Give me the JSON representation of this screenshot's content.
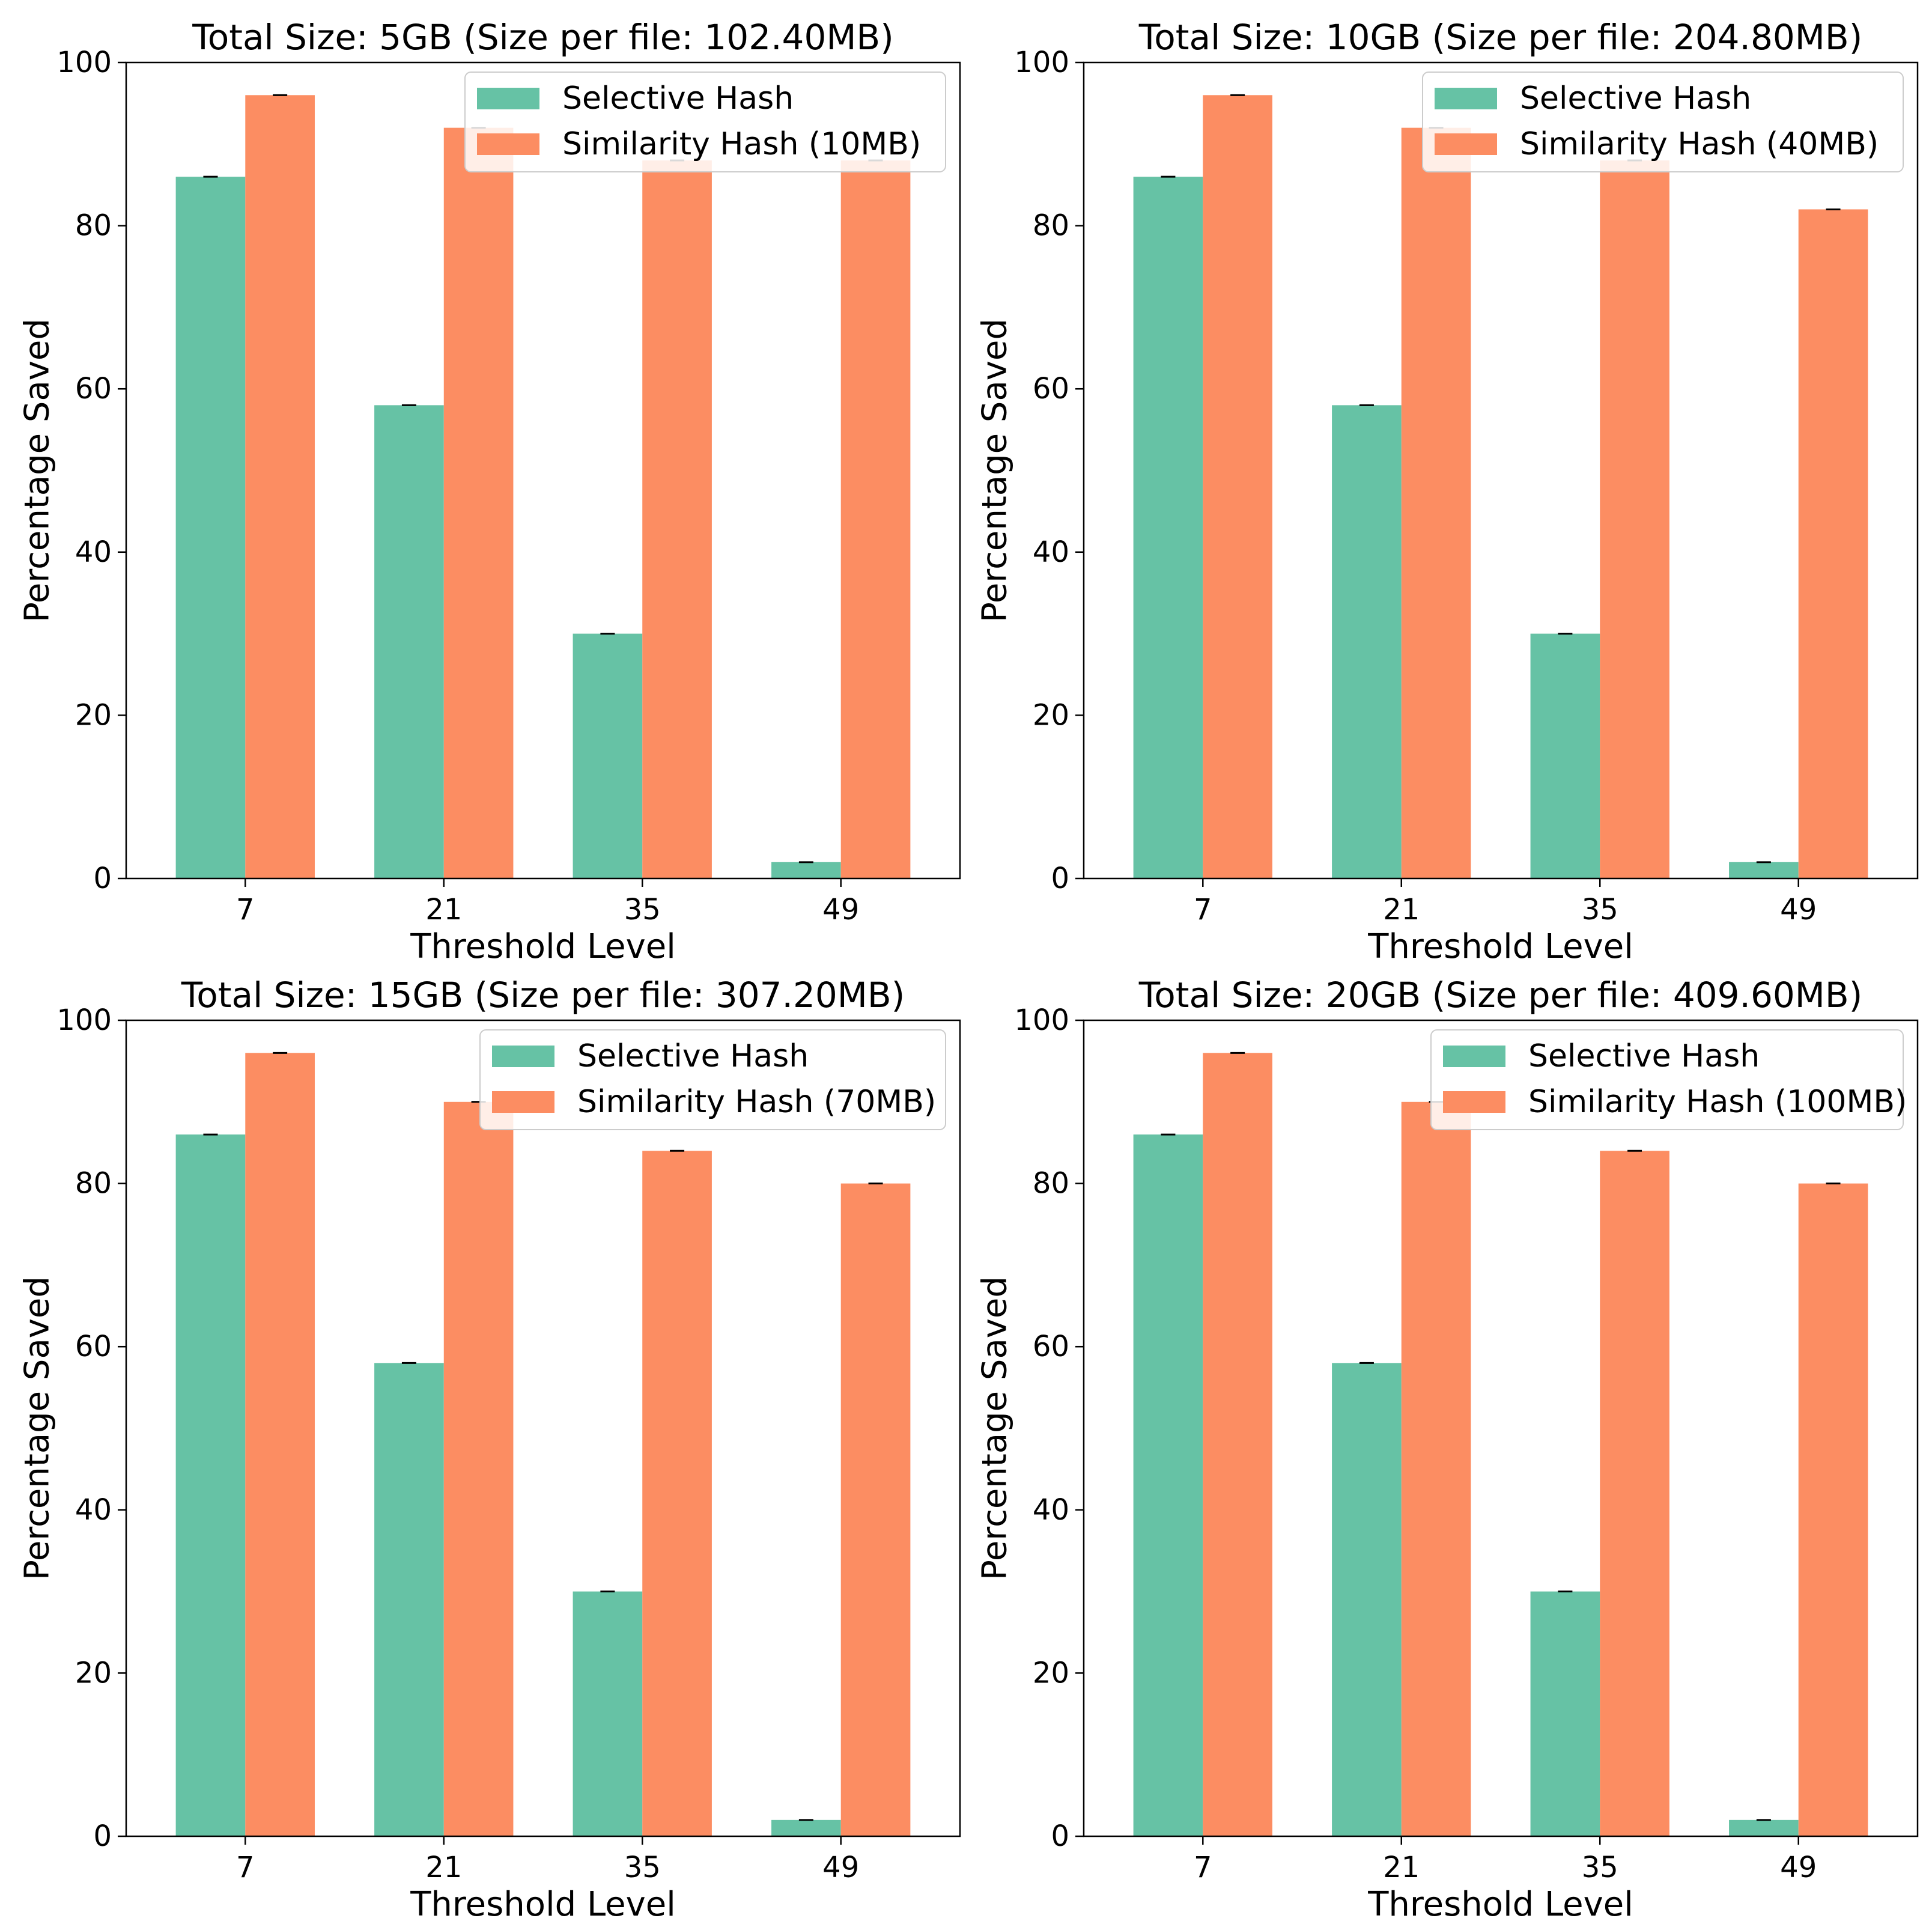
{
  "figure": {
    "colors": {
      "selective": "#66c2a5",
      "similarity": "#fc8d62",
      "axes": "#000000",
      "legend_border": "#cccccc"
    }
  },
  "chart_data": [
    {
      "type": "bar",
      "title": "Total Size: 5GB (Size per file: 102.40MB)",
      "xlabel": "Threshold Level",
      "ylabel": "Percentage Saved",
      "categories": [
        "7",
        "21",
        "35",
        "49"
      ],
      "ylim": [
        0,
        100
      ],
      "yticks": [
        "0",
        "20",
        "40",
        "60",
        "80",
        "100"
      ],
      "grid": false,
      "legend_position": "top-right",
      "series": [
        {
          "name": "Selective Hash",
          "color": "#66c2a5",
          "values": [
            86,
            58,
            30,
            2
          ]
        },
        {
          "name": "Similarity Hash (10MB)",
          "color": "#fc8d62",
          "values": [
            96,
            92,
            88,
            88
          ]
        }
      ]
    },
    {
      "type": "bar",
      "title": "Total Size: 10GB (Size per file: 204.80MB)",
      "xlabel": "Threshold Level",
      "ylabel": "Percentage Saved",
      "categories": [
        "7",
        "21",
        "35",
        "49"
      ],
      "ylim": [
        0,
        100
      ],
      "yticks": [
        "0",
        "20",
        "40",
        "60",
        "80",
        "100"
      ],
      "grid": false,
      "legend_position": "top-right",
      "series": [
        {
          "name": "Selective Hash",
          "color": "#66c2a5",
          "values": [
            86,
            58,
            30,
            2
          ]
        },
        {
          "name": "Similarity Hash (40MB)",
          "color": "#fc8d62",
          "values": [
            96,
            92,
            88,
            82
          ]
        }
      ]
    },
    {
      "type": "bar",
      "title": "Total Size: 15GB (Size per file: 307.20MB)",
      "xlabel": "Threshold Level",
      "ylabel": "Percentage Saved",
      "categories": [
        "7",
        "21",
        "35",
        "49"
      ],
      "ylim": [
        0,
        100
      ],
      "yticks": [
        "0",
        "20",
        "40",
        "60",
        "80",
        "100"
      ],
      "grid": false,
      "legend_position": "top-right",
      "series": [
        {
          "name": "Selective Hash",
          "color": "#66c2a5",
          "values": [
            86,
            58,
            30,
            2
          ]
        },
        {
          "name": "Similarity Hash (70MB)",
          "color": "#fc8d62",
          "values": [
            96,
            90,
            84,
            80
          ]
        }
      ]
    },
    {
      "type": "bar",
      "title": "Total Size: 20GB (Size per file: 409.60MB)",
      "xlabel": "Threshold Level",
      "ylabel": "Percentage Saved",
      "categories": [
        "7",
        "21",
        "35",
        "49"
      ],
      "ylim": [
        0,
        100
      ],
      "yticks": [
        "0",
        "20",
        "40",
        "60",
        "80",
        "100"
      ],
      "grid": false,
      "legend_position": "top-right",
      "series": [
        {
          "name": "Selective Hash",
          "color": "#66c2a5",
          "values": [
            86,
            58,
            30,
            2
          ]
        },
        {
          "name": "Similarity Hash (100MB)",
          "color": "#fc8d62",
          "values": [
            96,
            90,
            84,
            80
          ]
        }
      ]
    }
  ]
}
